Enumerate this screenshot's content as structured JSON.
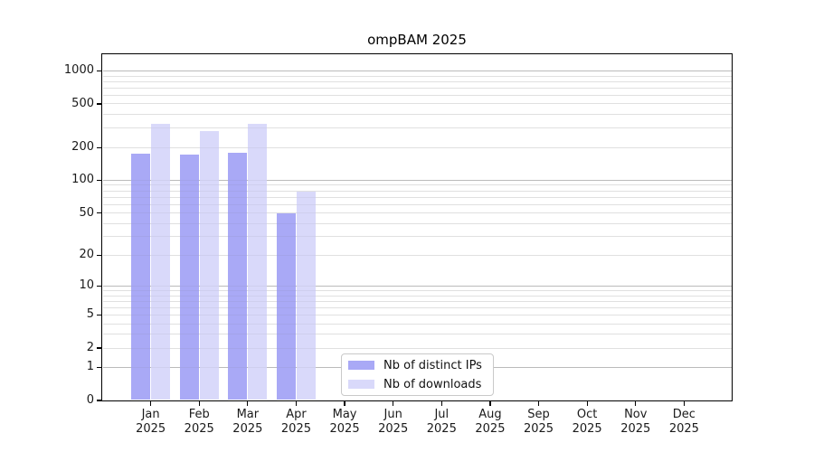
{
  "chart_data": {
    "type": "bar",
    "title": "ompBAM 2025",
    "months": [
      "Jan",
      "Feb",
      "Mar",
      "Apr",
      "May",
      "Jun",
      "Jul",
      "Aug",
      "Sep",
      "Oct",
      "Nov",
      "Dec"
    ],
    "year": "2025",
    "series": [
      {
        "name": "Nb of distinct IPs",
        "color": "#a9a9f6",
        "values": [
          176,
          172,
          179,
          50,
          0,
          0,
          0,
          0,
          0,
          0,
          0,
          0
        ]
      },
      {
        "name": "Nb of downloads",
        "color": "#d9d9fa",
        "values": [
          327,
          284,
          332,
          78,
          0,
          0,
          0,
          0,
          0,
          0,
          0,
          0
        ]
      }
    ],
    "yticks": [
      1000,
      500,
      200,
      100,
      50,
      20,
      10,
      5,
      2,
      1,
      0
    ],
    "scale": "log10(1+y)",
    "ylim": [
      0,
      1500
    ],
    "xlabel": "",
    "ylabel": "",
    "grid": "horizontal",
    "legend_position": "inside-bottom-center-left",
    "axis_color": "#000000",
    "major_grid_color": "#c3c3c3",
    "minor_grid_color": "#ebebeb"
  }
}
